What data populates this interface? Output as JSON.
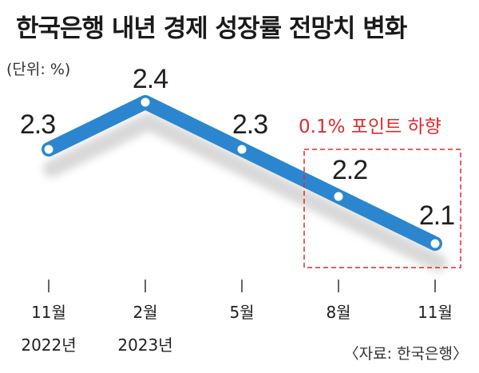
{
  "title": "한국은행 내년 경제 성장률 전망치 변화",
  "unit": "(단위: %)",
  "source": "〈자료: 한국은행〉",
  "annotation": "0.1% 포인트 하향",
  "colors": {
    "line": "#2b86cf",
    "shadow": "#d4d4d4",
    "annotation": "#e0292b"
  },
  "chart_data": {
    "type": "line",
    "categories": [
      {
        "line1": "11월",
        "line2": "2022년"
      },
      {
        "line1": "2월",
        "line2": "2023년"
      },
      {
        "line1": "5월",
        "line2": ""
      },
      {
        "line1": "8월",
        "line2": ""
      },
      {
        "line1": "11월",
        "line2": ""
      }
    ],
    "values": [
      2.3,
      2.4,
      2.3,
      2.2,
      2.1
    ],
    "value_labels": [
      "2.3",
      "2.4",
      "2.3",
      "2.2",
      "2.1"
    ],
    "ylabel": "(단위: %)",
    "grid": false,
    "highlight_range": [
      3,
      4
    ]
  }
}
